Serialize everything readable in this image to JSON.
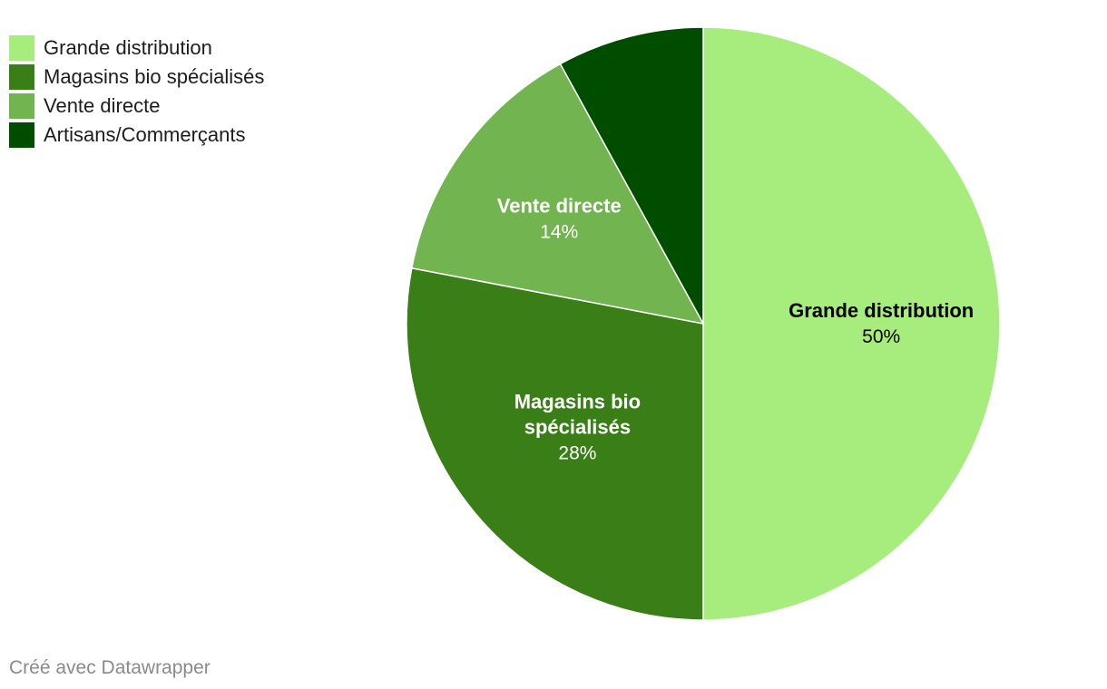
{
  "chart_data": {
    "type": "pie",
    "categories": [
      "Grande distribution",
      "Magasins bio spécialisés",
      "Vente directe",
      "Artisans/Commerçants"
    ],
    "values": [
      50,
      28,
      14,
      8
    ],
    "unit": "%",
    "legend_position": "top-left",
    "slice_labels": [
      {
        "name": [
          "Grande distribution"
        ],
        "value": "50%"
      },
      {
        "name": [
          "Magasins bio",
          "spécialisés"
        ],
        "value": "28%"
      },
      {
        "name": [
          "Vente directe"
        ],
        "value": "14%"
      },
      {
        "name": [],
        "value": ""
      }
    ],
    "colors": [
      "#a7ed7e",
      "#3a7e18",
      "#72b44f",
      "#004d00"
    ],
    "label_colors": [
      "#000000",
      "#ffffff",
      "#ffffff",
      "#ffffff"
    ]
  },
  "legend": {
    "items": [
      {
        "label": "Grande distribution",
        "color": "#a7ed7e"
      },
      {
        "label": "Magasins bio spécialisés",
        "color": "#3a7e18"
      },
      {
        "label": "Vente directe",
        "color": "#72b44f"
      },
      {
        "label": "Artisans/Commerçants",
        "color": "#004d00"
      }
    ]
  },
  "footer": {
    "credit": "Créé avec Datawrapper"
  }
}
